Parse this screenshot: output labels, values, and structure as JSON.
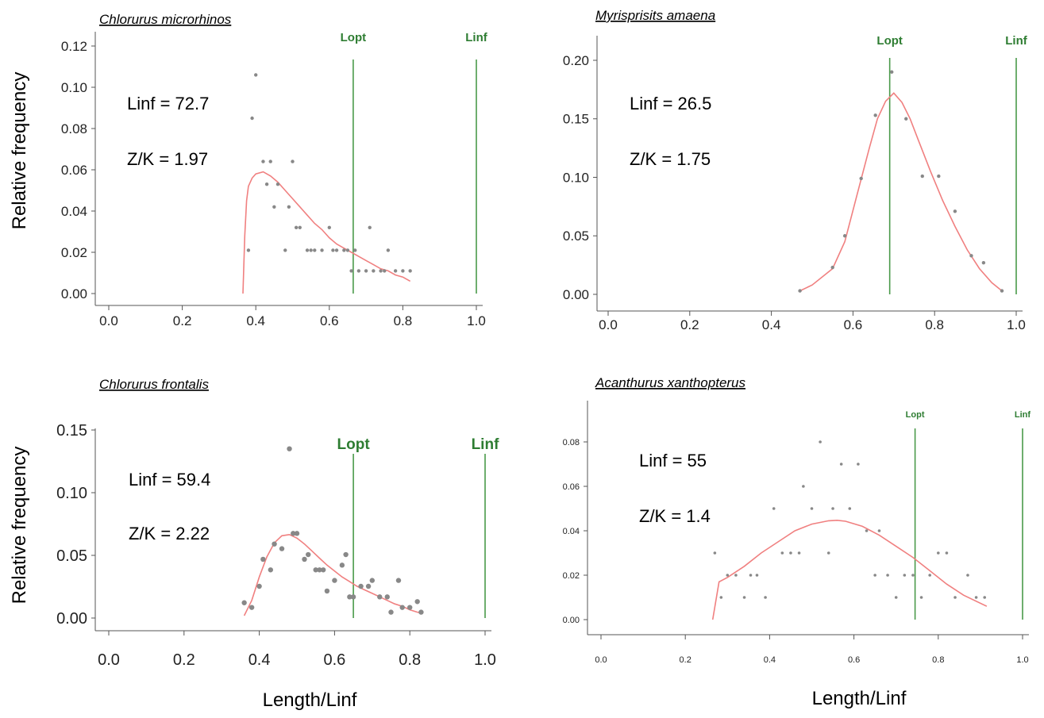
{
  "labels": {
    "ylabel": "Relative frequency",
    "xlabel": "Length/Linf"
  },
  "colors": {
    "curve": "#f08080",
    "vline": "#4a9a4a",
    "points": "#888888",
    "axis": "#555555"
  },
  "chart_data": [
    {
      "type": "scatter",
      "title": "Chlorurus microrhinos",
      "params": [
        "Linf = 72.7",
        "Z/K = 1.97"
      ],
      "xlim": [
        0.0,
        1.0
      ],
      "ylim": [
        0.0,
        0.12
      ],
      "x_ticks": [
        "0.0",
        "0.2",
        "0.4",
        "0.6",
        "0.8",
        "1.0"
      ],
      "y_ticks": [
        "0.00",
        "0.02",
        "0.04",
        "0.06",
        "0.08",
        "0.10",
        "0.12"
      ],
      "vlines": [
        {
          "label": "Lopt",
          "x": 0.665
        },
        {
          "label": "Linf",
          "x": 1.0
        }
      ],
      "points": {
        "x": [
          0.38,
          0.39,
          0.4,
          0.42,
          0.43,
          0.44,
          0.45,
          0.46,
          0.48,
          0.49,
          0.5,
          0.51,
          0.52,
          0.54,
          0.55,
          0.56,
          0.58,
          0.6,
          0.61,
          0.62,
          0.64,
          0.65,
          0.66,
          0.67,
          0.68,
          0.7,
          0.71,
          0.72,
          0.74,
          0.75,
          0.76,
          0.78,
          0.8,
          0.82
        ],
        "y": [
          0.021,
          0.085,
          0.106,
          0.064,
          0.053,
          0.064,
          0.042,
          0.053,
          0.021,
          0.042,
          0.064,
          0.032,
          0.032,
          0.021,
          0.021,
          0.021,
          0.021,
          0.032,
          0.021,
          0.021,
          0.021,
          0.021,
          0.011,
          0.021,
          0.011,
          0.011,
          0.032,
          0.011,
          0.011,
          0.011,
          0.021,
          0.011,
          0.011,
          0.011
        ]
      },
      "curve": {
        "x": [
          0.365,
          0.37,
          0.375,
          0.38,
          0.39,
          0.4,
          0.42,
          0.44,
          0.46,
          0.48,
          0.5,
          0.52,
          0.54,
          0.56,
          0.58,
          0.6,
          0.62,
          0.64,
          0.66,
          0.68,
          0.7,
          0.72,
          0.74,
          0.76,
          0.78,
          0.8,
          0.82
        ],
        "y": [
          0.0,
          0.028,
          0.045,
          0.052,
          0.056,
          0.058,
          0.059,
          0.057,
          0.054,
          0.05,
          0.046,
          0.042,
          0.038,
          0.034,
          0.031,
          0.027,
          0.024,
          0.022,
          0.02,
          0.018,
          0.016,
          0.014,
          0.012,
          0.011,
          0.009,
          0.008,
          0.006
        ]
      }
    },
    {
      "type": "scatter",
      "title": "Myrisprisits amaena",
      "params": [
        "Linf = 26.5",
        "Z/K = 1.75"
      ],
      "xlim": [
        0.0,
        1.0
      ],
      "ylim": [
        0.0,
        0.2
      ],
      "x_ticks": [
        "0.0",
        "0.2",
        "0.4",
        "0.6",
        "0.8",
        "1.0"
      ],
      "y_ticks": [
        "0.00",
        "0.05",
        "0.10",
        "0.15",
        "0.20"
      ],
      "vlines": [
        {
          "label": "Lopt",
          "x": 0.69
        },
        {
          "label": "Linf",
          "x": 1.0
        }
      ],
      "points": {
        "x": [
          0.47,
          0.55,
          0.58,
          0.62,
          0.655,
          0.695,
          0.73,
          0.77,
          0.81,
          0.85,
          0.89,
          0.92,
          0.965
        ],
        "y": [
          0.003,
          0.023,
          0.05,
          0.099,
          0.153,
          0.19,
          0.15,
          0.101,
          0.101,
          0.071,
          0.033,
          0.027,
          0.003
        ]
      },
      "curve": {
        "x": [
          0.47,
          0.5,
          0.55,
          0.58,
          0.61,
          0.64,
          0.66,
          0.68,
          0.7,
          0.72,
          0.74,
          0.76,
          0.79,
          0.82,
          0.85,
          0.88,
          0.91,
          0.94,
          0.965
        ],
        "y": [
          0.003,
          0.008,
          0.022,
          0.045,
          0.085,
          0.125,
          0.15,
          0.165,
          0.172,
          0.164,
          0.15,
          0.132,
          0.105,
          0.08,
          0.058,
          0.038,
          0.022,
          0.01,
          0.003
        ]
      }
    },
    {
      "type": "scatter",
      "title": "Chlorurus frontalis",
      "params": [
        "Linf = 59.4",
        "Z/K = 2.22"
      ],
      "xlim": [
        0.0,
        1.0
      ],
      "ylim": [
        0.0,
        0.16
      ],
      "x_ticks": [
        "0.0",
        "0.2",
        "0.4",
        "0.6",
        "0.8",
        "1.0"
      ],
      "y_ticks": [
        "0.00",
        "0.05",
        "0.10",
        "0.15"
      ],
      "vlines": [
        {
          "label": "Lopt",
          "x": 0.65
        },
        {
          "label": "Linf",
          "x": 1.0
        }
      ],
      "points": {
        "x": [
          0.36,
          0.38,
          0.4,
          0.41,
          0.43,
          0.44,
          0.46,
          0.48,
          0.49,
          0.5,
          0.52,
          0.53,
          0.55,
          0.56,
          0.57,
          0.58,
          0.6,
          0.62,
          0.63,
          0.64,
          0.65,
          0.67,
          0.69,
          0.7,
          0.72,
          0.74,
          0.75,
          0.77,
          0.78,
          0.8,
          0.82,
          0.83
        ],
        "y": [
          0.013,
          0.009,
          0.027,
          0.05,
          0.041,
          0.063,
          0.059,
          0.144,
          0.072,
          0.072,
          0.05,
          0.054,
          0.041,
          0.041,
          0.041,
          0.023,
          0.032,
          0.045,
          0.054,
          0.018,
          0.018,
          0.027,
          0.027,
          0.032,
          0.018,
          0.018,
          0.005,
          0.032,
          0.009,
          0.009,
          0.014,
          0.005
        ]
      },
      "curve": {
        "x": [
          0.36,
          0.38,
          0.4,
          0.42,
          0.44,
          0.46,
          0.48,
          0.5,
          0.52,
          0.54,
          0.56,
          0.58,
          0.6,
          0.62,
          0.64,
          0.66,
          0.68,
          0.7,
          0.72,
          0.74,
          0.76,
          0.78,
          0.8,
          0.82,
          0.835
        ],
        "y": [
          0.002,
          0.015,
          0.035,
          0.052,
          0.064,
          0.07,
          0.071,
          0.068,
          0.063,
          0.057,
          0.051,
          0.045,
          0.04,
          0.035,
          0.031,
          0.027,
          0.024,
          0.021,
          0.018,
          0.015,
          0.012,
          0.01,
          0.007,
          0.005,
          0.004
        ]
      }
    },
    {
      "type": "scatter",
      "title": "Acanthurus xanthopterus",
      "params": [
        "Linf = 55",
        "Z/K = 1.4"
      ],
      "xlim": [
        0.0,
        1.0
      ],
      "ylim": [
        0.0,
        0.08
      ],
      "x_ticks": [
        "0.0",
        "0.2",
        "0.4",
        "0.6",
        "0.8",
        "1.0"
      ],
      "y_ticks": [
        "0.00",
        "0.02",
        "0.04",
        "0.06",
        "0.08"
      ],
      "vlines": [
        {
          "label": "Lopt",
          "x": 0.745
        },
        {
          "label": "Linf",
          "x": 1.0
        }
      ],
      "points": {
        "x": [
          0.27,
          0.285,
          0.3,
          0.32,
          0.34,
          0.355,
          0.37,
          0.39,
          0.41,
          0.43,
          0.45,
          0.47,
          0.48,
          0.5,
          0.52,
          0.54,
          0.55,
          0.57,
          0.59,
          0.61,
          0.63,
          0.65,
          0.66,
          0.68,
          0.7,
          0.72,
          0.74,
          0.76,
          0.78,
          0.8,
          0.82,
          0.84,
          0.87,
          0.89,
          0.91
        ],
        "y": [
          0.03,
          0.01,
          0.02,
          0.02,
          0.01,
          0.02,
          0.02,
          0.01,
          0.05,
          0.03,
          0.03,
          0.03,
          0.06,
          0.05,
          0.08,
          0.03,
          0.05,
          0.07,
          0.05,
          0.07,
          0.04,
          0.02,
          0.04,
          0.02,
          0.01,
          0.02,
          0.02,
          0.01,
          0.02,
          0.03,
          0.03,
          0.01,
          0.02,
          0.01,
          0.01
        ]
      },
      "curve": {
        "x": [
          0.265,
          0.28,
          0.3,
          0.34,
          0.38,
          0.42,
          0.46,
          0.5,
          0.54,
          0.56,
          0.58,
          0.62,
          0.66,
          0.7,
          0.74,
          0.78,
          0.82,
          0.86,
          0.915
        ],
        "y": [
          0.0,
          0.017,
          0.019,
          0.024,
          0.03,
          0.035,
          0.04,
          0.043,
          0.0445,
          0.0447,
          0.0443,
          0.042,
          0.038,
          0.033,
          0.028,
          0.022,
          0.016,
          0.011,
          0.006
        ]
      }
    }
  ]
}
